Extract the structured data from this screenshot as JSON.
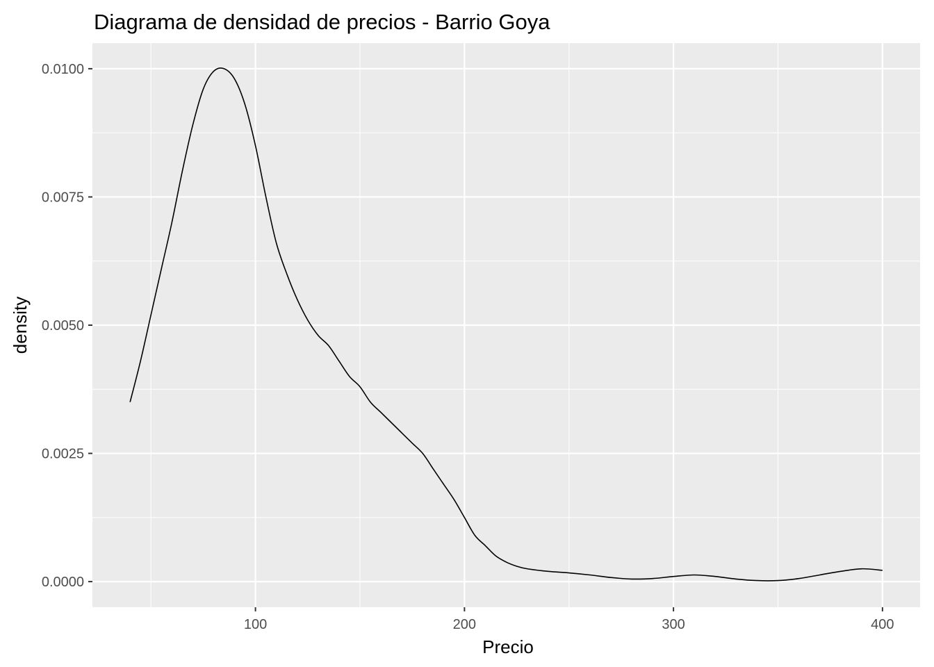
{
  "chart_data": {
    "type": "line",
    "title": "Diagrama de densidad de precios - Barrio Goya",
    "xlabel": "Precio",
    "ylabel": "density",
    "xlim": [
      22,
      418
    ],
    "ylim": [
      -0.0005,
      0.0105
    ],
    "x_ticks": [
      100,
      200,
      300,
      400
    ],
    "x_minor_ticks": [
      50,
      150,
      250,
      350
    ],
    "y_ticks": [
      0.0,
      0.0025,
      0.005,
      0.0075,
      0.01
    ],
    "y_minor_ticks": [
      0.00125,
      0.00375,
      0.00625,
      0.00875
    ],
    "x_tick_labels": [
      "100",
      "200",
      "300",
      "400"
    ],
    "y_tick_labels": [
      "0.0000",
      "0.0025",
      "0.0050",
      "0.0075",
      "0.0100"
    ],
    "grid": true,
    "legend": "none",
    "colors": {
      "panel": "#ebebeb",
      "grid": "#ffffff",
      "line": "#000000",
      "tick_text": "#4d4d4d",
      "tick_mark": "#333333"
    },
    "series": [
      {
        "x": [
          40,
          45,
          50,
          55,
          60,
          65,
          70,
          75,
          80,
          85,
          90,
          95,
          100,
          105,
          110,
          115,
          120,
          125,
          130,
          135,
          140,
          145,
          150,
          155,
          160,
          165,
          170,
          175,
          180,
          185,
          190,
          195,
          200,
          205,
          210,
          215,
          220,
          225,
          230,
          240,
          250,
          260,
          270,
          280,
          290,
          300,
          310,
          320,
          330,
          340,
          350,
          360,
          370,
          380,
          390,
          400
        ],
        "y": [
          0.0035,
          0.0043,
          0.0052,
          0.0061,
          0.007,
          0.008,
          0.0089,
          0.0096,
          0.00995,
          0.01,
          0.0098,
          0.0093,
          0.0085,
          0.0075,
          0.0066,
          0.006,
          0.0055,
          0.0051,
          0.0048,
          0.0046,
          0.0043,
          0.004,
          0.0038,
          0.0035,
          0.0033,
          0.0031,
          0.0029,
          0.0027,
          0.0025,
          0.0022,
          0.0019,
          0.0016,
          0.00125,
          0.0009,
          0.0007,
          0.0005,
          0.00038,
          0.0003,
          0.00025,
          0.0002,
          0.00017,
          0.00013,
          8e-05,
          5e-05,
          6e-05,
          0.0001,
          0.00013,
          0.0001,
          5e-05,
          2e-05,
          2e-05,
          6e-05,
          0.00013,
          0.0002,
          0.00025,
          0.00022
        ]
      }
    ]
  }
}
